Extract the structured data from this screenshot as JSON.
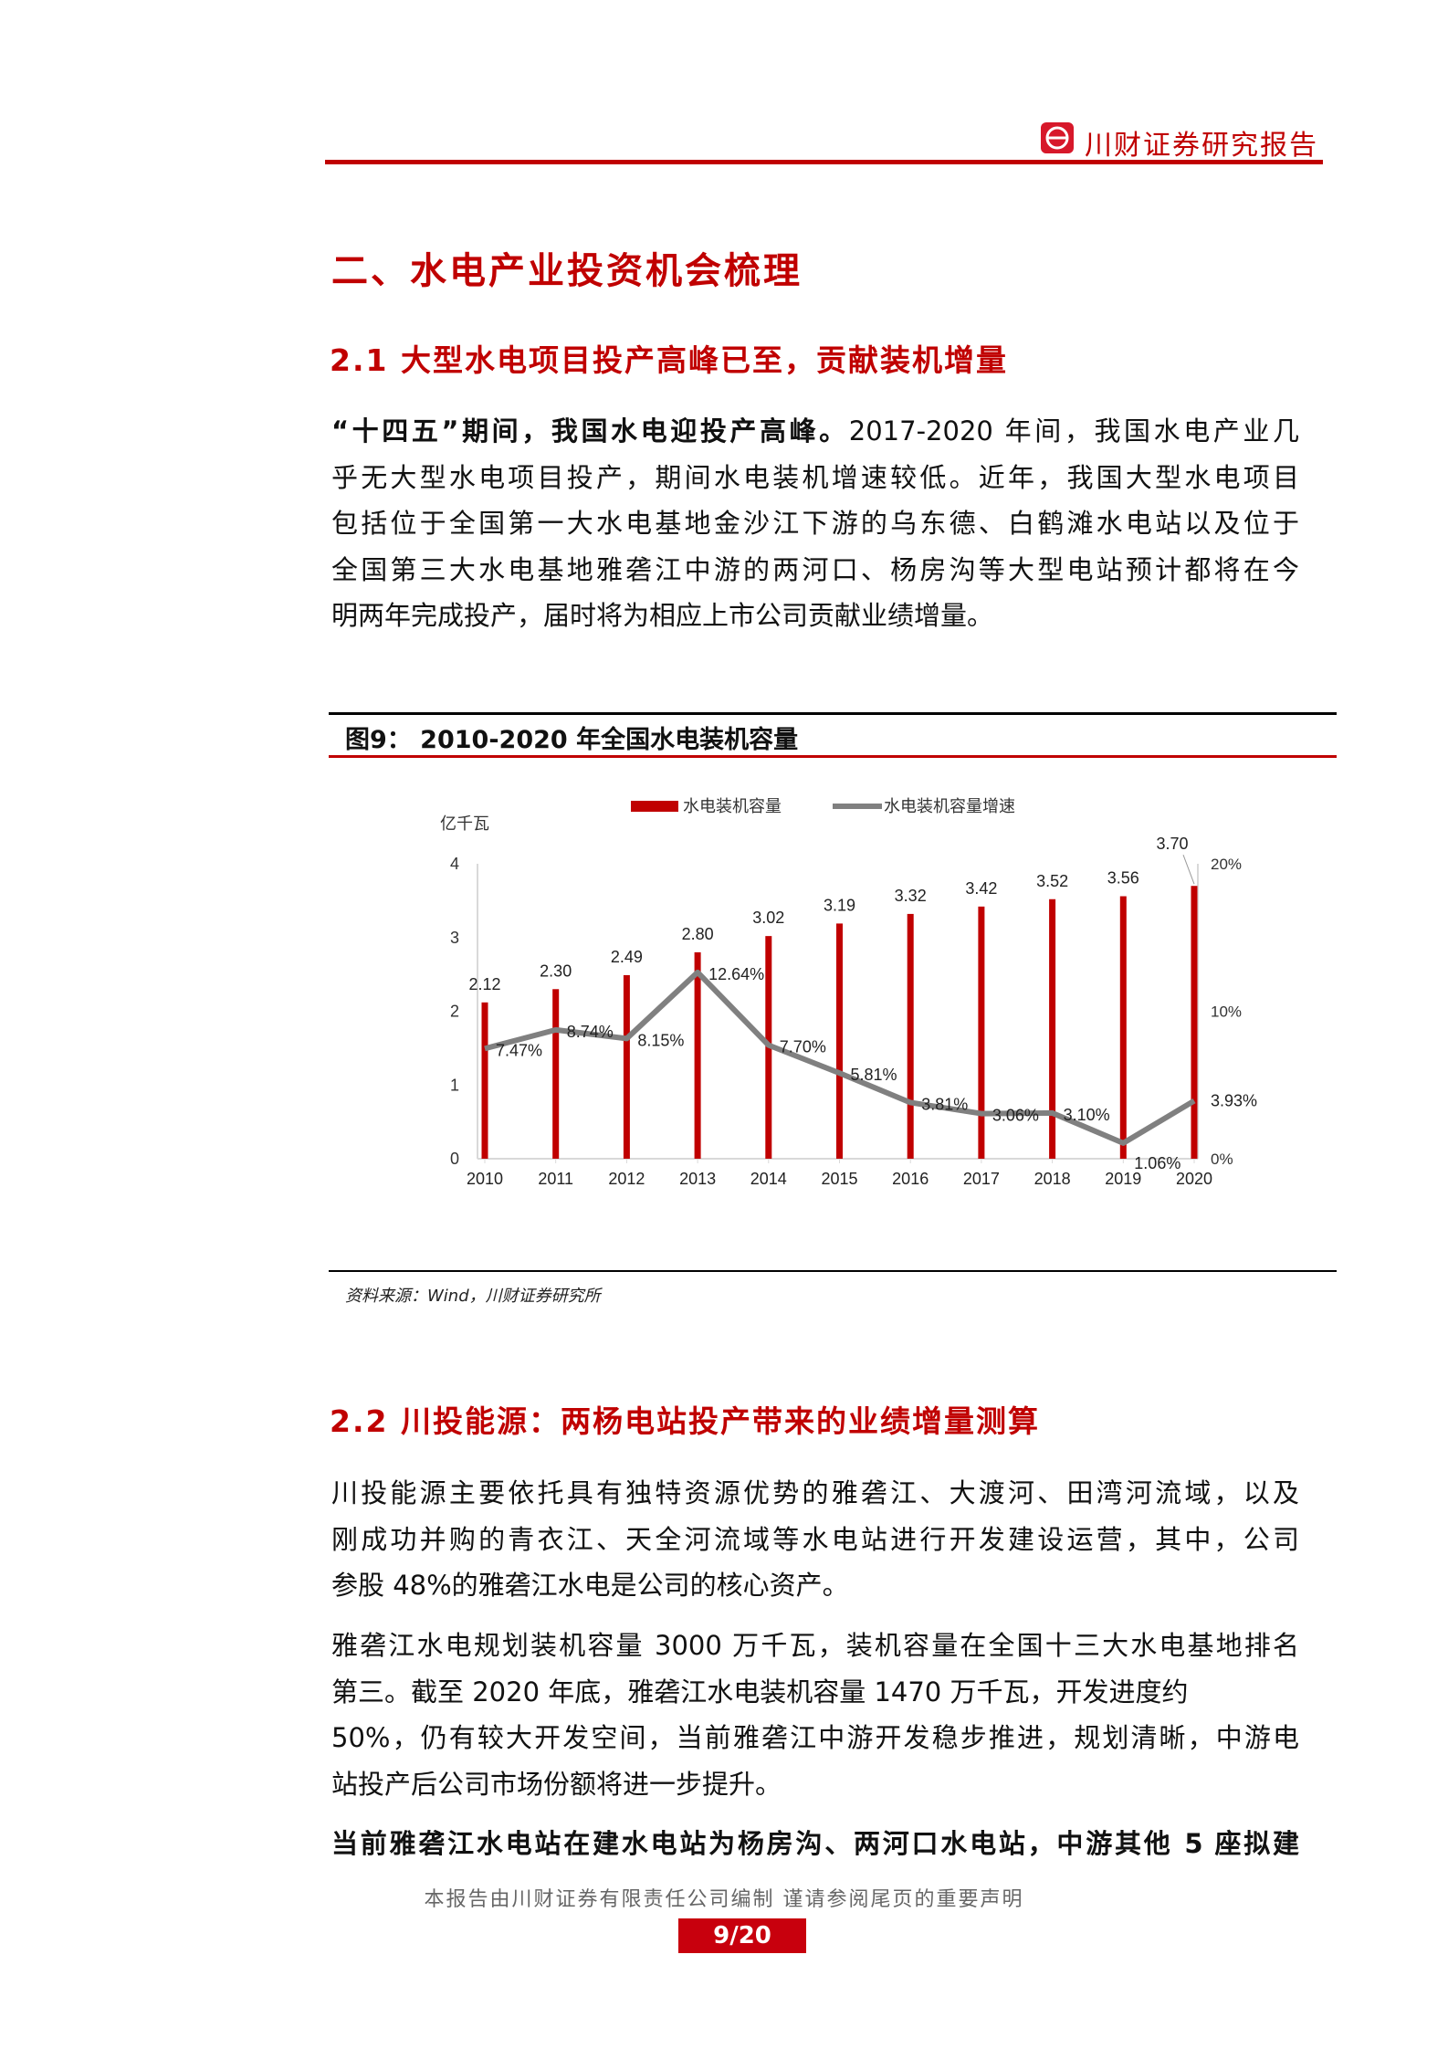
{
  "header": {
    "brand": "川财证券研究报告",
    "logo_icon": "chuancai-logo"
  },
  "section_title": "二、水电产业投资机会梳理",
  "section_2_1": {
    "title": "2.1 大型水电项目投产高峰已至，贡献装机增量",
    "lead_bold": "“十四五”期间，我国水电迎投产高峰。",
    "lines": [
      "2017-2020 年间，我国水电产业几",
      "乎无大型水电项目投产，期间水电装机增速较低。近年，我国大型水电项目",
      "包括位于全国第一大水电基地金沙江下游的乌东德、白鹤滩水电站以及位于",
      "全国第三大水电基地雅砻江中游的两河口、杨房沟等大型电站预计都将在今",
      "明两年完成投产，届时将为相应上市公司贡献业绩增量。"
    ]
  },
  "figure": {
    "title": "图9：  2010-2020 年全国水电装机容量",
    "source": "资料来源：Wind，川财证券研究所"
  },
  "chart_data": {
    "type": "bar+line",
    "categories": [
      "2010",
      "2011",
      "2012",
      "2013",
      "2014",
      "2015",
      "2016",
      "2017",
      "2018",
      "2019",
      "2020"
    ],
    "series": [
      {
        "name": "水电装机容量",
        "type": "bar",
        "axis": "left",
        "color": "#c00000",
        "values": [
          2.12,
          2.3,
          2.49,
          2.8,
          3.02,
          3.19,
          3.32,
          3.42,
          3.52,
          3.56,
          3.7
        ],
        "labels": [
          "2.12",
          "2.30",
          "2.49",
          "2.80",
          "3.02",
          "3.19",
          "3.32",
          "3.42",
          "3.52",
          "3.56",
          "3.70"
        ]
      },
      {
        "name": "水电装机容量增速",
        "type": "line",
        "axis": "right",
        "color": "#808080",
        "values": [
          7.47,
          8.74,
          8.15,
          12.64,
          7.7,
          5.81,
          3.81,
          3.06,
          3.1,
          1.06,
          3.93
        ],
        "labels": [
          "7.47%",
          "8.74%",
          "8.15%",
          "12.64%",
          "7.70%",
          "5.81%",
          "3.81%",
          "3.06%",
          "3.10%",
          "1.06%",
          "3.93%"
        ]
      }
    ],
    "ylabel": "亿千瓦",
    "ylim": [
      0,
      4
    ],
    "yticks": [
      "0",
      "1",
      "2",
      "3",
      "4"
    ],
    "y2lim": [
      0,
      20
    ],
    "y2ticks": [
      "0%",
      "10%",
      "20%"
    ],
    "legend": "top",
    "grid": false
  },
  "section_2_2": {
    "title": "2.2 川投能源：两杨电站投产带来的业绩增量测算",
    "para1": [
      "川投能源主要依托具有独特资源优势的雅砻江、大渡河、田湾河流域，以及",
      "刚成功并购的青衣江、天全河流域等水电站进行开发建设运营，其中，公司",
      "参股 48%的雅砻江水电是公司的核心资产。"
    ],
    "para2": [
      "雅砻江水电规划装机容量 3000 万千瓦，装机容量在全国十三大水电基地排名",
      "第三。截至 2020 年底，雅砻江水电装机容量 1470 万千瓦，开发进度约",
      "50%，仍有较大开发空间，当前雅砻江中游开发稳步推进，规划清晰，中游电",
      "站投产后公司市场份额将进一步提升。"
    ],
    "bold_line": "当前雅砻江水电站在建水电站为杨房沟、两河口水电站，中游其他 5 座拟建"
  },
  "footer": {
    "disclaimer": "本报告由川财证券有限责任公司编制  谨请参阅尾页的重要声明",
    "page": "9/20"
  }
}
